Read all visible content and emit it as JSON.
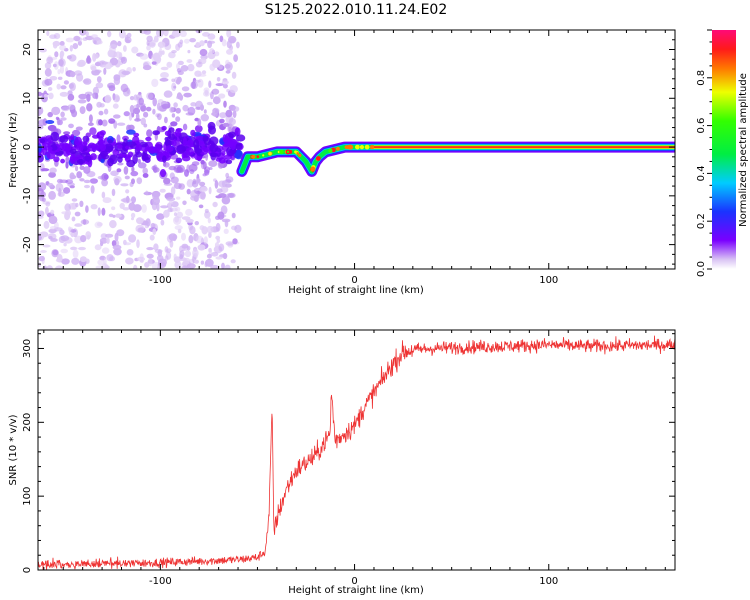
{
  "figure": {
    "title": "S125.2022.010.11.24.E02"
  },
  "chart_data": [
    {
      "type": "heatmap",
      "xlabel": "Height of straight line (km)",
      "ylabel": "Frequency (Hz)",
      "xlim": [
        -163,
        165
      ],
      "ylim": [
        -25,
        24
      ],
      "xticks": [
        -100,
        0,
        100
      ],
      "yticks": [
        -20,
        -10,
        0,
        10,
        20
      ],
      "colorbar": {
        "label": "Normalized spectral amplitude",
        "range": [
          0,
          1
        ],
        "ticks": [
          0.0,
          0.2,
          0.4,
          0.6,
          0.8
        ],
        "tick_labels": [
          "0.0",
          "0.2",
          "0.4",
          "0.6",
          "0.8"
        ]
      },
      "ridge": {
        "x": [
          -58,
          -55,
          -50,
          -45,
          -40,
          -35,
          -30,
          -25,
          -22,
          -20,
          -18,
          -15,
          -10,
          -5,
          0,
          10,
          20,
          30,
          50,
          80,
          120,
          165
        ],
        "y": [
          -5,
          -2,
          -2,
          -1.5,
          -1,
          -1,
          -1,
          -3,
          -5,
          -3,
          -2,
          -1,
          -0.5,
          0,
          0,
          0,
          0,
          0,
          0,
          0,
          0,
          0
        ]
      }
    },
    {
      "type": "line",
      "xlabel": "Height of straight line (km)",
      "ylabel": "SNR (10 * v/v)",
      "xlim": [
        -163,
        165
      ],
      "ylim": [
        0,
        325
      ],
      "xticks": [
        -100,
        0,
        100
      ],
      "yticks": [
        0,
        100,
        200,
        300
      ],
      "color": "#ee3333",
      "series": [
        {
          "x": [
            -163,
            -140,
            -120,
            -100,
            -80,
            -60,
            -50,
            -46,
            -44,
            -42.5,
            -41.5,
            -40,
            -35,
            -30,
            -25,
            -20,
            -15,
            -12.5,
            -12,
            -10,
            -5,
            0,
            5,
            10,
            15,
            20,
            25,
            30,
            40,
            60,
            80,
            100,
            120,
            140,
            165
          ],
          "y": [
            8,
            8,
            9,
            10,
            12,
            14,
            17,
            25,
            75,
            218,
            50,
            70,
            110,
            135,
            145,
            155,
            175,
            185,
            245,
            175,
            185,
            195,
            220,
            240,
            260,
            280,
            295,
            298,
            300,
            302,
            303,
            305,
            303,
            304,
            305
          ]
        }
      ]
    }
  ]
}
